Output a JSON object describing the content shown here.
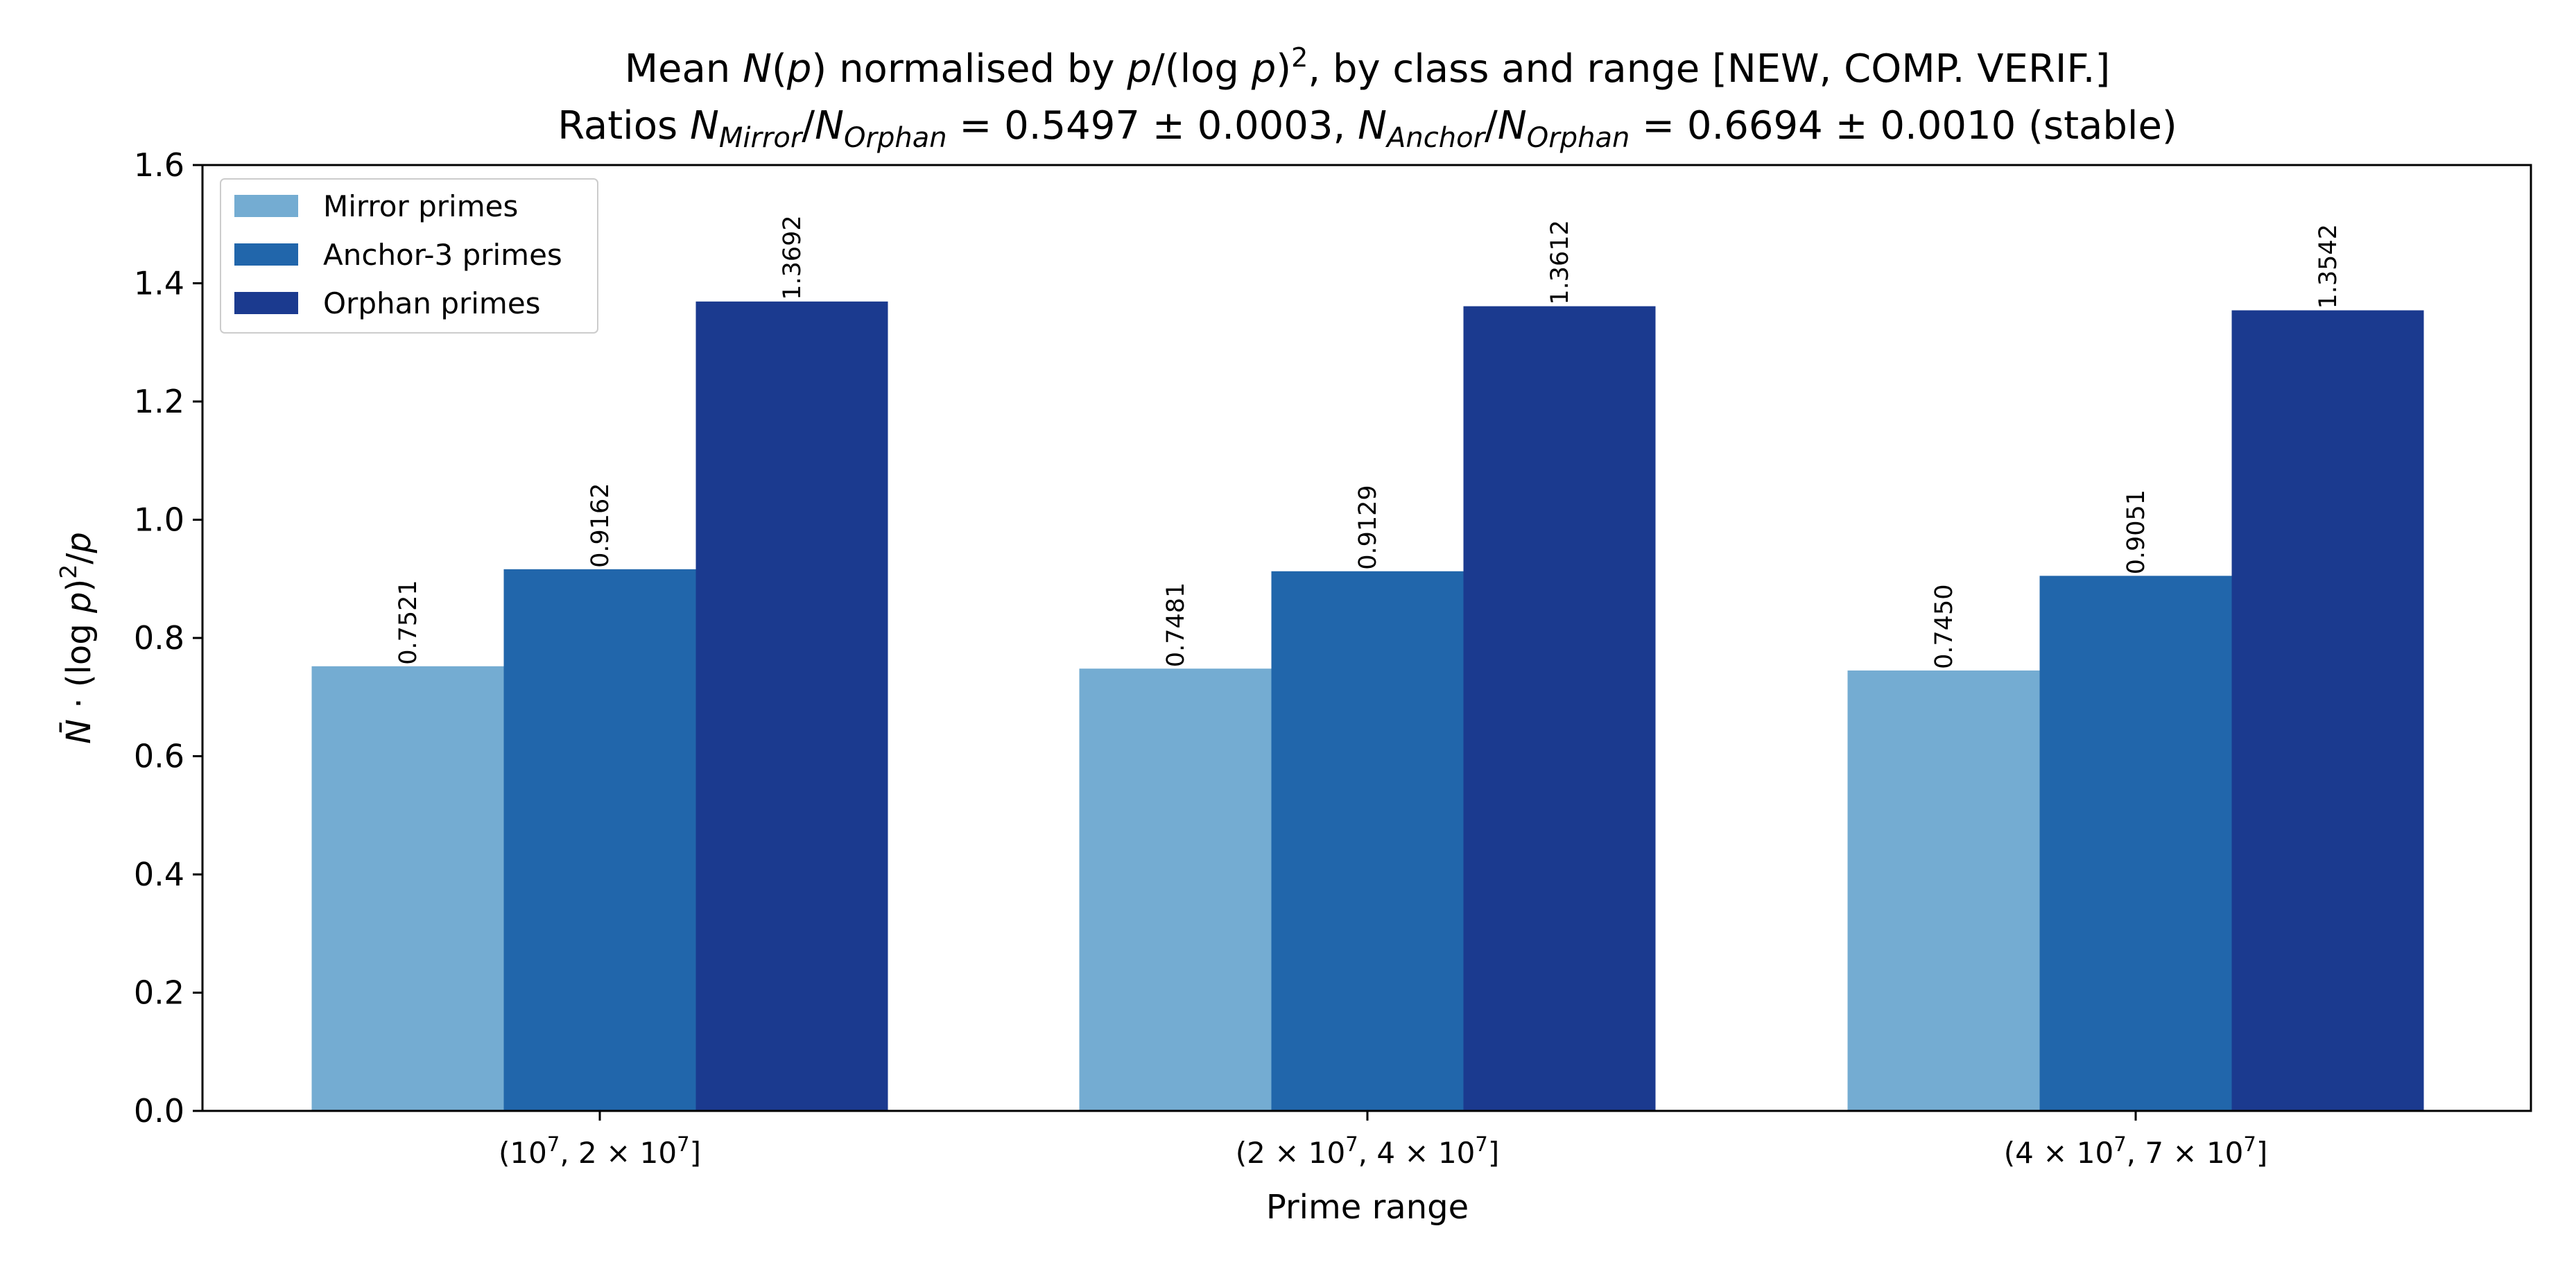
{
  "chart_data": {
    "type": "bar",
    "title_line1": {
      "pre": "Mean ",
      "N": "N",
      "p_open": "(",
      "p": "p",
      "p_close": ")",
      "mid": " normalised by ",
      "frac_p": "p",
      "frac_mid": "/(log ",
      "frac_p2": "p",
      "frac_close": ")",
      "sup": "2",
      "post": ", by class and range [NEW, COMP. VERIF.]"
    },
    "title_line2": {
      "pre": "Ratios ",
      "r1_N": "N",
      "r1_sub_a": "Mirror",
      "r1_slash": "/",
      "r1_N2": "N",
      "r1_sub_b": "Orphan",
      "r1_val": " = 0.5497 ± 0.0003, ",
      "r2_N": "N",
      "r2_sub_a": "Anchor",
      "r2_slash": "/",
      "r2_N2": "N",
      "r2_sub_b": "Orphan",
      "r2_val": " = 0.6694 ± 0.0010 (stable)"
    },
    "xlabel": "Prime range",
    "ylabel": {
      "N": "N̄",
      "mid": " · (log ",
      "p": "p",
      "close": ")",
      "sup": "2",
      "slash": "/",
      "p2": "p"
    },
    "ylim": [
      0,
      1.6
    ],
    "yticks": [
      "0.0",
      "0.2",
      "0.4",
      "0.6",
      "0.8",
      "1.0",
      "1.2",
      "1.4",
      "1.6"
    ],
    "categories": [
      {
        "open": "(10",
        "sup1": "7",
        "mid": ", 2 × 10",
        "sup2": "7",
        "close": "]"
      },
      {
        "open": "(2 × 10",
        "sup1": "7",
        "mid": ", 4 × 10",
        "sup2": "7",
        "close": "]"
      },
      {
        "open": "(4 × 10",
        "sup1": "7",
        "mid": ", 7 × 10",
        "sup2": "7",
        "close": "]"
      }
    ],
    "series": [
      {
        "name": "Mirror primes",
        "color": "#74acd2",
        "values": [
          0.7521,
          0.7481,
          0.745
        ],
        "labels": [
          "0.7521",
          "0.7481",
          "0.7450"
        ]
      },
      {
        "name": "Anchor-3 primes",
        "color": "#2166ab",
        "values": [
          0.9162,
          0.9129,
          0.9051
        ],
        "labels": [
          "0.9162",
          "0.9129",
          "0.9051"
        ]
      },
      {
        "name": "Orphan primes",
        "color": "#1b3a8f",
        "values": [
          1.3692,
          1.3612,
          1.3542
        ],
        "labels": [
          "1.3692",
          "1.3612",
          "1.3542"
        ]
      }
    ],
    "grid": false,
    "legend_position": "top-left"
  }
}
